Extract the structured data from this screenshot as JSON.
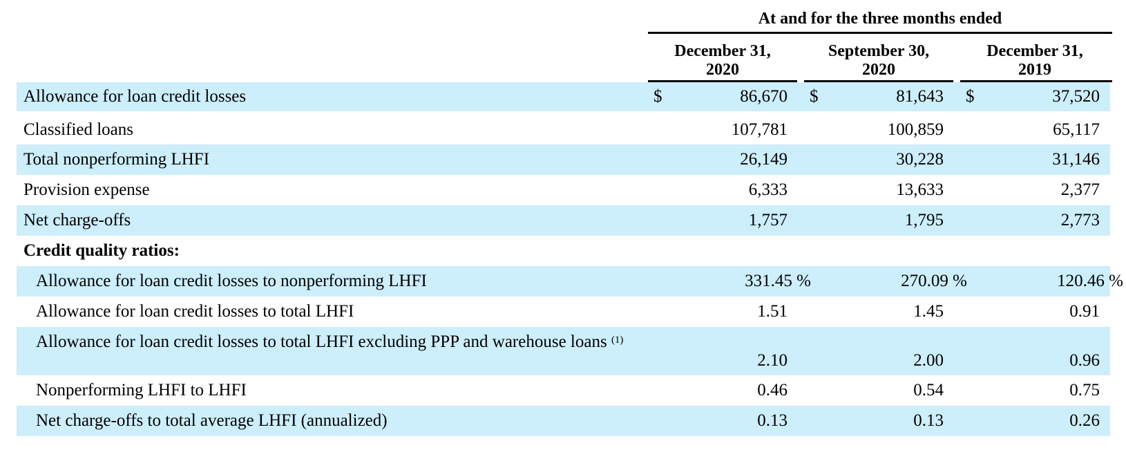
{
  "header": {
    "span_title": "At and for the three months ended",
    "columns": [
      {
        "line1": "December 31,",
        "line2": "2020"
      },
      {
        "line1": "September 30,",
        "line2": "2020"
      },
      {
        "line1": "December 31,",
        "line2": "2019"
      }
    ]
  },
  "rows": [
    {
      "label": "Allowance for loan credit losses",
      "currency": "$",
      "values": [
        "86,670",
        "81,643",
        "37,520"
      ]
    },
    {
      "label": "Classified loans",
      "values": [
        "107,781",
        "100,859",
        "65,117"
      ]
    },
    {
      "label": "Total nonperforming LHFI",
      "values": [
        "26,149",
        "30,228",
        "31,146"
      ]
    },
    {
      "label": "Provision expense",
      "values": [
        "6,333",
        "13,633",
        "2,377"
      ]
    },
    {
      "label": "Net charge-offs",
      "values": [
        "1,757",
        "1,795",
        "2,773"
      ]
    },
    {
      "label": "Credit quality ratios:"
    },
    {
      "label": "Allowance for loan credit losses to nonperforming LHFI",
      "values": [
        "331.45 %",
        "270.09 %",
        "120.46 %"
      ]
    },
    {
      "label": "Allowance for loan credit losses to total LHFI",
      "values": [
        "1.51",
        "1.45",
        "0.91"
      ]
    },
    {
      "label": "Allowance for loan credit losses to total LHFI excluding PPP and warehouse loans",
      "footnote": "(1)",
      "values": [
        "2.10",
        "2.00",
        "0.96"
      ]
    },
    {
      "label": "Nonperforming LHFI to LHFI",
      "values": [
        "0.46",
        "0.54",
        "0.75"
      ]
    },
    {
      "label": "Net charge-offs to total average LHFI (annualized)",
      "values": [
        "0.13",
        "0.13",
        "0.26"
      ]
    }
  ],
  "colors": {
    "row_shade": "#cdeefb"
  }
}
